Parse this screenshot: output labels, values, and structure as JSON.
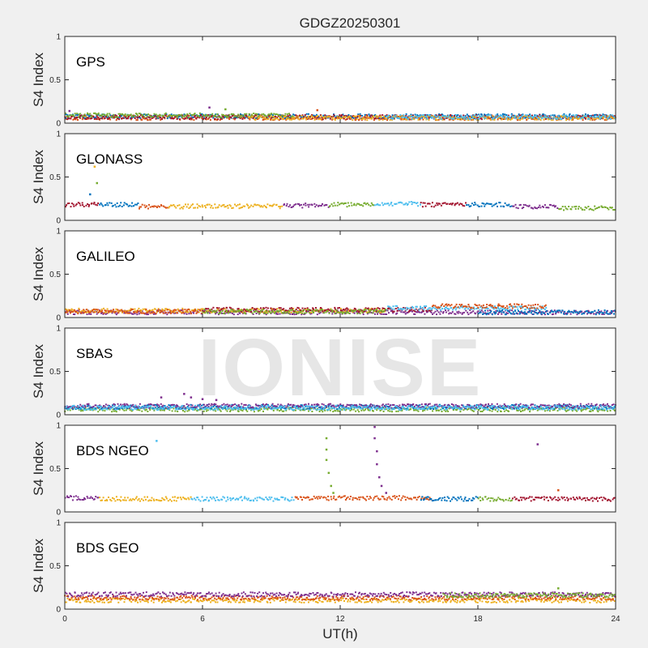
{
  "chart_data": {
    "type": "scatter",
    "title": "GDGZ20250301",
    "xlabel": "UT(h)",
    "ylabel": "S4 Index",
    "xlim": [
      0,
      24
    ],
    "ylim": [
      0,
      1
    ],
    "x_ticks": [
      "0",
      "6",
      "12",
      "18",
      "24"
    ],
    "y_ticks": [
      "0",
      "0.5",
      "1"
    ],
    "watermark": "IONISE",
    "grid": false,
    "palette": [
      "#0072BD",
      "#D95319",
      "#EDB120",
      "#7E2F8E",
      "#77AC30",
      "#4DBEEE",
      "#A2142F"
    ],
    "panels": [
      {
        "name": "GPS",
        "segments": [
          {
            "x0": 0.0,
            "x1": 24.0,
            "y": 0.06,
            "color": 1
          },
          {
            "x0": 0.0,
            "x1": 24.0,
            "y": 0.08,
            "color": 0
          },
          {
            "x0": 0.0,
            "x1": 24.0,
            "y": 0.07,
            "color": 6
          },
          {
            "x0": 0.0,
            "x1": 10.0,
            "y": 0.09,
            "color": 4
          },
          {
            "x0": 8.0,
            "x1": 24.0,
            "y": 0.06,
            "color": 2
          },
          {
            "x0": 14.0,
            "x1": 24.0,
            "y": 0.07,
            "color": 5
          }
        ],
        "spikes": [
          {
            "x": 6.3,
            "y": 0.18,
            "color": 3
          },
          {
            "x": 7.0,
            "y": 0.16,
            "color": 4
          },
          {
            "x": 11.0,
            "y": 0.15,
            "color": 1
          },
          {
            "x": 0.2,
            "y": 0.14,
            "color": 3
          }
        ]
      },
      {
        "name": "GLONASS",
        "segments": [
          {
            "x0": 0.0,
            "x1": 1.5,
            "y": 0.18,
            "color": 6
          },
          {
            "x0": 1.5,
            "x1": 3.2,
            "y": 0.18,
            "color": 0
          },
          {
            "x0": 3.2,
            "x1": 4.5,
            "y": 0.16,
            "color": 1
          },
          {
            "x0": 4.5,
            "x1": 9.5,
            "y": 0.16,
            "color": 2
          },
          {
            "x0": 9.5,
            "x1": 11.5,
            "y": 0.17,
            "color": 3
          },
          {
            "x0": 11.5,
            "x1": 13.5,
            "y": 0.18,
            "color": 4
          },
          {
            "x0": 13.5,
            "x1": 15.5,
            "y": 0.19,
            "color": 5
          },
          {
            "x0": 15.5,
            "x1": 17.5,
            "y": 0.18,
            "color": 6
          },
          {
            "x0": 17.5,
            "x1": 19.5,
            "y": 0.18,
            "color": 0
          },
          {
            "x0": 19.5,
            "x1": 21.5,
            "y": 0.16,
            "color": 3
          },
          {
            "x0": 21.5,
            "x1": 24.0,
            "y": 0.14,
            "color": 4
          }
        ],
        "spikes": [
          {
            "x": 1.4,
            "y": 0.43,
            "color": 4
          },
          {
            "x": 1.1,
            "y": 0.3,
            "color": 0
          },
          {
            "x": 1.3,
            "y": 0.62,
            "color": 2
          }
        ]
      },
      {
        "name": "GALILEO",
        "segments": [
          {
            "x0": 0.0,
            "x1": 24.0,
            "y": 0.06,
            "color": 3
          },
          {
            "x0": 0.0,
            "x1": 14.0,
            "y": 0.08,
            "color": 2
          },
          {
            "x0": 6.0,
            "x1": 16.0,
            "y": 0.09,
            "color": 6
          },
          {
            "x0": 14.0,
            "x1": 21.0,
            "y": 0.11,
            "color": 5
          },
          {
            "x0": 16.0,
            "x1": 21.0,
            "y": 0.13,
            "color": 1
          },
          {
            "x0": 18.0,
            "x1": 24.0,
            "y": 0.06,
            "color": 0
          },
          {
            "x0": 0.0,
            "x1": 6.0,
            "y": 0.07,
            "color": 1
          },
          {
            "x0": 6.0,
            "x1": 14.0,
            "y": 0.07,
            "color": 4
          }
        ],
        "spikes": []
      },
      {
        "name": "SBAS",
        "segments": [
          {
            "x0": 0.0,
            "x1": 24.0,
            "y": 0.06,
            "color": 4
          },
          {
            "x0": 0.0,
            "x1": 24.0,
            "y": 0.09,
            "color": 0
          },
          {
            "x0": 0.0,
            "x1": 24.0,
            "y": 0.1,
            "color": 3
          },
          {
            "x0": 0.0,
            "x1": 24.0,
            "y": 0.08,
            "color": 5
          }
        ],
        "spikes": [
          {
            "x": 5.2,
            "y": 0.24,
            "color": 3
          },
          {
            "x": 5.5,
            "y": 0.2,
            "color": 3
          },
          {
            "x": 4.2,
            "y": 0.2,
            "color": 3
          },
          {
            "x": 6.0,
            "y": 0.18,
            "color": 3
          },
          {
            "x": 6.6,
            "y": 0.17,
            "color": 3
          }
        ]
      },
      {
        "name": "BDS NGEO",
        "segments": [
          {
            "x0": 0.0,
            "x1": 1.5,
            "y": 0.16,
            "color": 3
          },
          {
            "x0": 1.5,
            "x1": 5.5,
            "y": 0.15,
            "color": 2
          },
          {
            "x0": 5.5,
            "x1": 10.0,
            "y": 0.15,
            "color": 5
          },
          {
            "x0": 10.0,
            "x1": 16.0,
            "y": 0.16,
            "color": 1
          },
          {
            "x0": 15.5,
            "x1": 18.0,
            "y": 0.15,
            "color": 0
          },
          {
            "x0": 18.0,
            "x1": 19.5,
            "y": 0.15,
            "color": 4
          },
          {
            "x0": 19.5,
            "x1": 24.0,
            "y": 0.15,
            "color": 6
          }
        ],
        "spikes": [
          {
            "x": 11.4,
            "y": 0.85,
            "color": 4
          },
          {
            "x": 11.4,
            "y": 0.72,
            "color": 4
          },
          {
            "x": 11.4,
            "y": 0.6,
            "color": 4
          },
          {
            "x": 11.5,
            "y": 0.45,
            "color": 4
          },
          {
            "x": 11.6,
            "y": 0.3,
            "color": 4
          },
          {
            "x": 11.7,
            "y": 0.22,
            "color": 4
          },
          {
            "x": 13.5,
            "y": 0.98,
            "color": 3
          },
          {
            "x": 13.5,
            "y": 0.85,
            "color": 3
          },
          {
            "x": 13.6,
            "y": 0.7,
            "color": 3
          },
          {
            "x": 13.6,
            "y": 0.55,
            "color": 3
          },
          {
            "x": 13.7,
            "y": 0.4,
            "color": 3
          },
          {
            "x": 13.8,
            "y": 0.3,
            "color": 3
          },
          {
            "x": 14.0,
            "y": 0.22,
            "color": 3
          },
          {
            "x": 20.6,
            "y": 0.78,
            "color": 3
          },
          {
            "x": 4.0,
            "y": 0.82,
            "color": 5
          },
          {
            "x": 21.5,
            "y": 0.25,
            "color": 1
          }
        ]
      },
      {
        "name": "BDS GEO",
        "segments": [
          {
            "x0": 0.0,
            "x1": 24.0,
            "y": 0.1,
            "color": 2
          },
          {
            "x0": 0.0,
            "x1": 24.0,
            "y": 0.13,
            "color": 1
          },
          {
            "x0": 0.0,
            "x1": 24.0,
            "y": 0.17,
            "color": 3
          },
          {
            "x0": 16.5,
            "x1": 24.0,
            "y": 0.16,
            "color": 4
          }
        ],
        "spikes": [
          {
            "x": 21.5,
            "y": 0.24,
            "color": 4
          }
        ]
      }
    ]
  }
}
